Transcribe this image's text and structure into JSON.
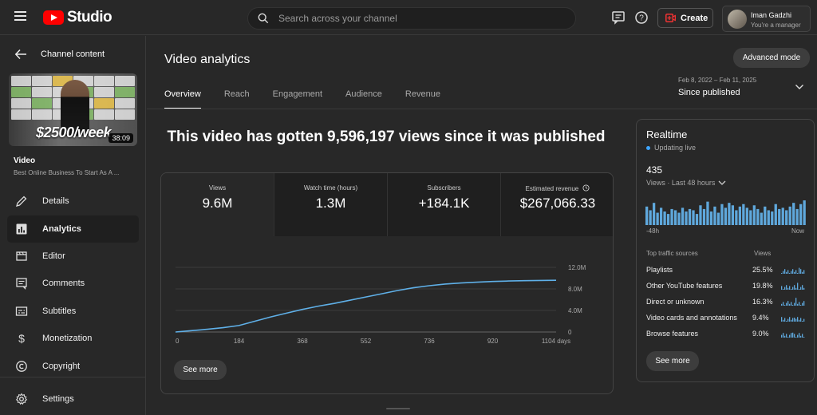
{
  "header": {
    "logo_text": "Studio",
    "search_placeholder": "Search across your channel",
    "create_label": "Create",
    "account_name": "Iman Gadzhi",
    "account_role": "You're a manager"
  },
  "sidebar": {
    "back_label": "Channel content",
    "thumbnail": {
      "price_text": "$2500/week",
      "duration": "38:09"
    },
    "video_label": "Video",
    "video_title": "Best Online Business To Start As A ...",
    "items": [
      {
        "label": "Details",
        "icon": "pencil-icon"
      },
      {
        "label": "Analytics",
        "icon": "analytics-icon",
        "active": true
      },
      {
        "label": "Editor",
        "icon": "clapperboard-icon"
      },
      {
        "label": "Comments",
        "icon": "comments-icon"
      },
      {
        "label": "Subtitles",
        "icon": "subtitles-icon"
      },
      {
        "label": "Monetization",
        "icon": "dollar-icon"
      },
      {
        "label": "Copyright",
        "icon": "copyright-icon"
      }
    ],
    "settings_label": "Settings"
  },
  "main": {
    "title": "Video analytics",
    "advanced_mode_label": "Advanced mode",
    "tabs": [
      {
        "label": "Overview",
        "active": true
      },
      {
        "label": "Reach"
      },
      {
        "label": "Engagement"
      },
      {
        "label": "Audience"
      },
      {
        "label": "Revenue"
      }
    ],
    "date_range": {
      "range": "Feb 8, 2022 – Feb 11, 2025",
      "label": "Since published"
    },
    "headline": "This video has gotten 9,596,197 views since it was published",
    "metrics": [
      {
        "label": "Views",
        "value": "9.6M",
        "active": true
      },
      {
        "label": "Watch time (hours)",
        "value": "1.3M"
      },
      {
        "label": "Subscribers",
        "value": "+184.1K"
      },
      {
        "label": "Estimated revenue",
        "value": "$267,066.33"
      }
    ],
    "see_more_label": "See more"
  },
  "chart_data": {
    "type": "line",
    "title": "",
    "xlabel": "",
    "ylabel": "",
    "x_ticks": [
      "0",
      "184",
      "368",
      "552",
      "736",
      "920",
      "1104 days"
    ],
    "y_ticks": [
      "0",
      "4.0M",
      "8.0M",
      "12.0M"
    ],
    "ylim": [
      0,
      12000000
    ],
    "xlim": [
      0,
      1104
    ],
    "grid": true,
    "color": "#5fb0e8",
    "x": [
      0,
      46,
      92,
      138,
      184,
      230,
      276,
      322,
      368,
      414,
      460,
      506,
      552,
      598,
      644,
      690,
      736,
      782,
      828,
      874,
      920,
      966,
      1012,
      1058,
      1104
    ],
    "values": [
      0,
      250000,
      500000,
      800000,
      1200000,
      2000000,
      2800000,
      3500000,
      4200000,
      4800000,
      5300000,
      5900000,
      6500000,
      7100000,
      7700000,
      8200000,
      8600000,
      8900000,
      9100000,
      9250000,
      9380000,
      9470000,
      9530000,
      9570000,
      9596197
    ]
  },
  "realtime": {
    "title": "Realtime",
    "status": "Updating live",
    "count": "435",
    "range_label": "Views · Last 48 hours",
    "axis_left": "-48h",
    "axis_right": "Now",
    "bars": [
      15,
      12,
      18,
      10,
      14,
      11,
      9,
      13,
      12,
      10,
      14,
      11,
      13,
      12,
      9,
      16,
      13,
      19,
      11,
      15,
      10,
      17,
      14,
      18,
      16,
      12,
      15,
      17,
      14,
      12,
      16,
      13,
      10,
      15,
      12,
      11,
      17,
      13,
      14,
      12,
      15,
      18,
      13,
      17,
      20
    ],
    "sources_header": "Top traffic sources",
    "views_header": "Views",
    "sources": [
      {
        "name": "Playlists",
        "pct": "25.5%"
      },
      {
        "name": "Other YouTube features",
        "pct": "19.8%"
      },
      {
        "name": "Direct or unknown",
        "pct": "16.3%"
      },
      {
        "name": "Video cards and annotations",
        "pct": "9.4%"
      },
      {
        "name": "Browse features",
        "pct": "9.0%"
      }
    ],
    "see_more_label": "See more"
  },
  "colors": {
    "accent": "#3ea6ff",
    "line": "#5fb0e8",
    "youtube_red": "#ff0000"
  }
}
